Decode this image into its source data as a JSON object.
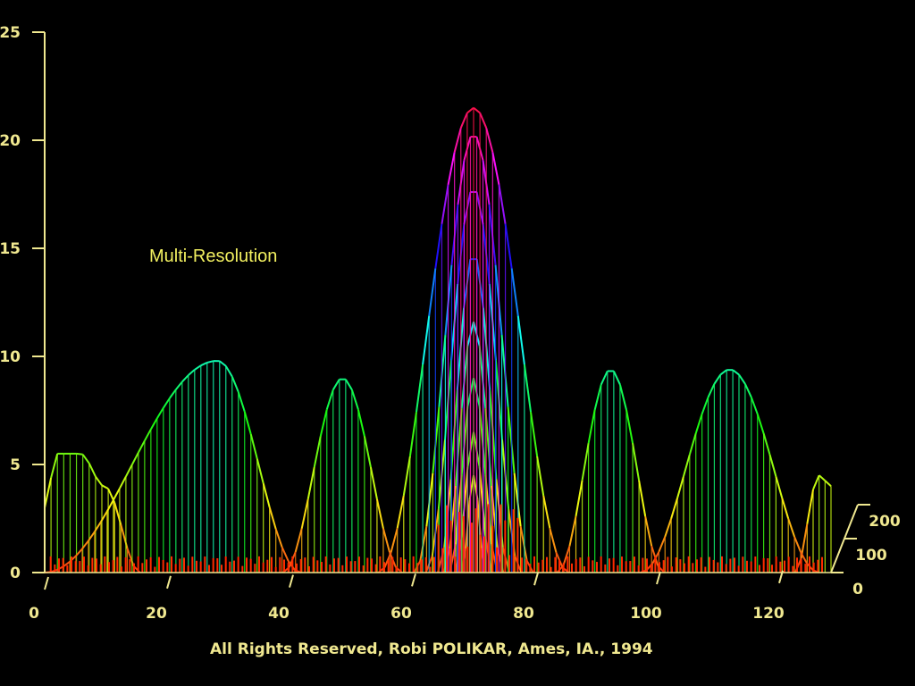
{
  "overlay_text": "Multi-Resolution",
  "credit_text": "All Rights Reserved, Robi POLIKAR, Ames, IA., 1994",
  "chart_data": {
    "type": "area",
    "description_style": "3d-waterfall",
    "x_ticks": [
      "0",
      "20",
      "40",
      "60",
      "80",
      "100",
      "120"
    ],
    "y_ticks": [
      "0",
      "5",
      "10",
      "15",
      "20",
      "25"
    ],
    "z_ticks": [
      "0",
      "100",
      "200"
    ],
    "xlim": [
      0,
      132
    ],
    "ylim": [
      0,
      25
    ],
    "colors": {
      "axis": "#f0e890",
      "background": "#000000",
      "low": "#ff2000",
      "mid": "#20e830",
      "high": "#e81040"
    },
    "series": [
      {
        "x": [
          0,
          2,
          6,
          10,
          16
        ],
        "y": [
          3,
          5.5,
          5.5,
          4,
          0
        ]
      },
      {
        "x": [
          0,
          29,
          43
        ],
        "y": [
          0,
          9.8,
          0
        ]
      },
      {
        "x": [
          40,
          50,
          60
        ],
        "y": [
          0,
          9,
          0
        ]
      },
      {
        "x": [
          56,
          72,
          88
        ],
        "y": [
          0,
          21.5,
          0
        ]
      },
      {
        "x": [
          62,
          72,
          82
        ],
        "y": [
          0,
          20.3,
          0
        ]
      },
      {
        "x": [
          64,
          72,
          80
        ],
        "y": [
          0,
          17.8,
          0
        ]
      },
      {
        "x": [
          66,
          72,
          78
        ],
        "y": [
          0,
          14.8,
          0
        ]
      },
      {
        "x": [
          67,
          72,
          77
        ],
        "y": [
          0,
          11.6,
          0
        ]
      },
      {
        "x": [
          68,
          72,
          76
        ],
        "y": [
          0,
          9,
          0
        ]
      },
      {
        "x": [
          69,
          72,
          75
        ],
        "y": [
          0,
          6.5,
          0
        ]
      },
      {
        "x": [
          70,
          72,
          74
        ],
        "y": [
          0,
          4.5,
          0
        ]
      },
      {
        "x": [
          86,
          95,
          104
        ],
        "y": [
          0,
          9.4,
          0
        ]
      },
      {
        "x": [
          100,
          115,
          130
        ],
        "y": [
          0,
          9.4,
          0
        ]
      },
      {
        "x": [
          126,
          130,
          132
        ],
        "y": [
          0,
          4.5,
          4
        ]
      }
    ]
  }
}
